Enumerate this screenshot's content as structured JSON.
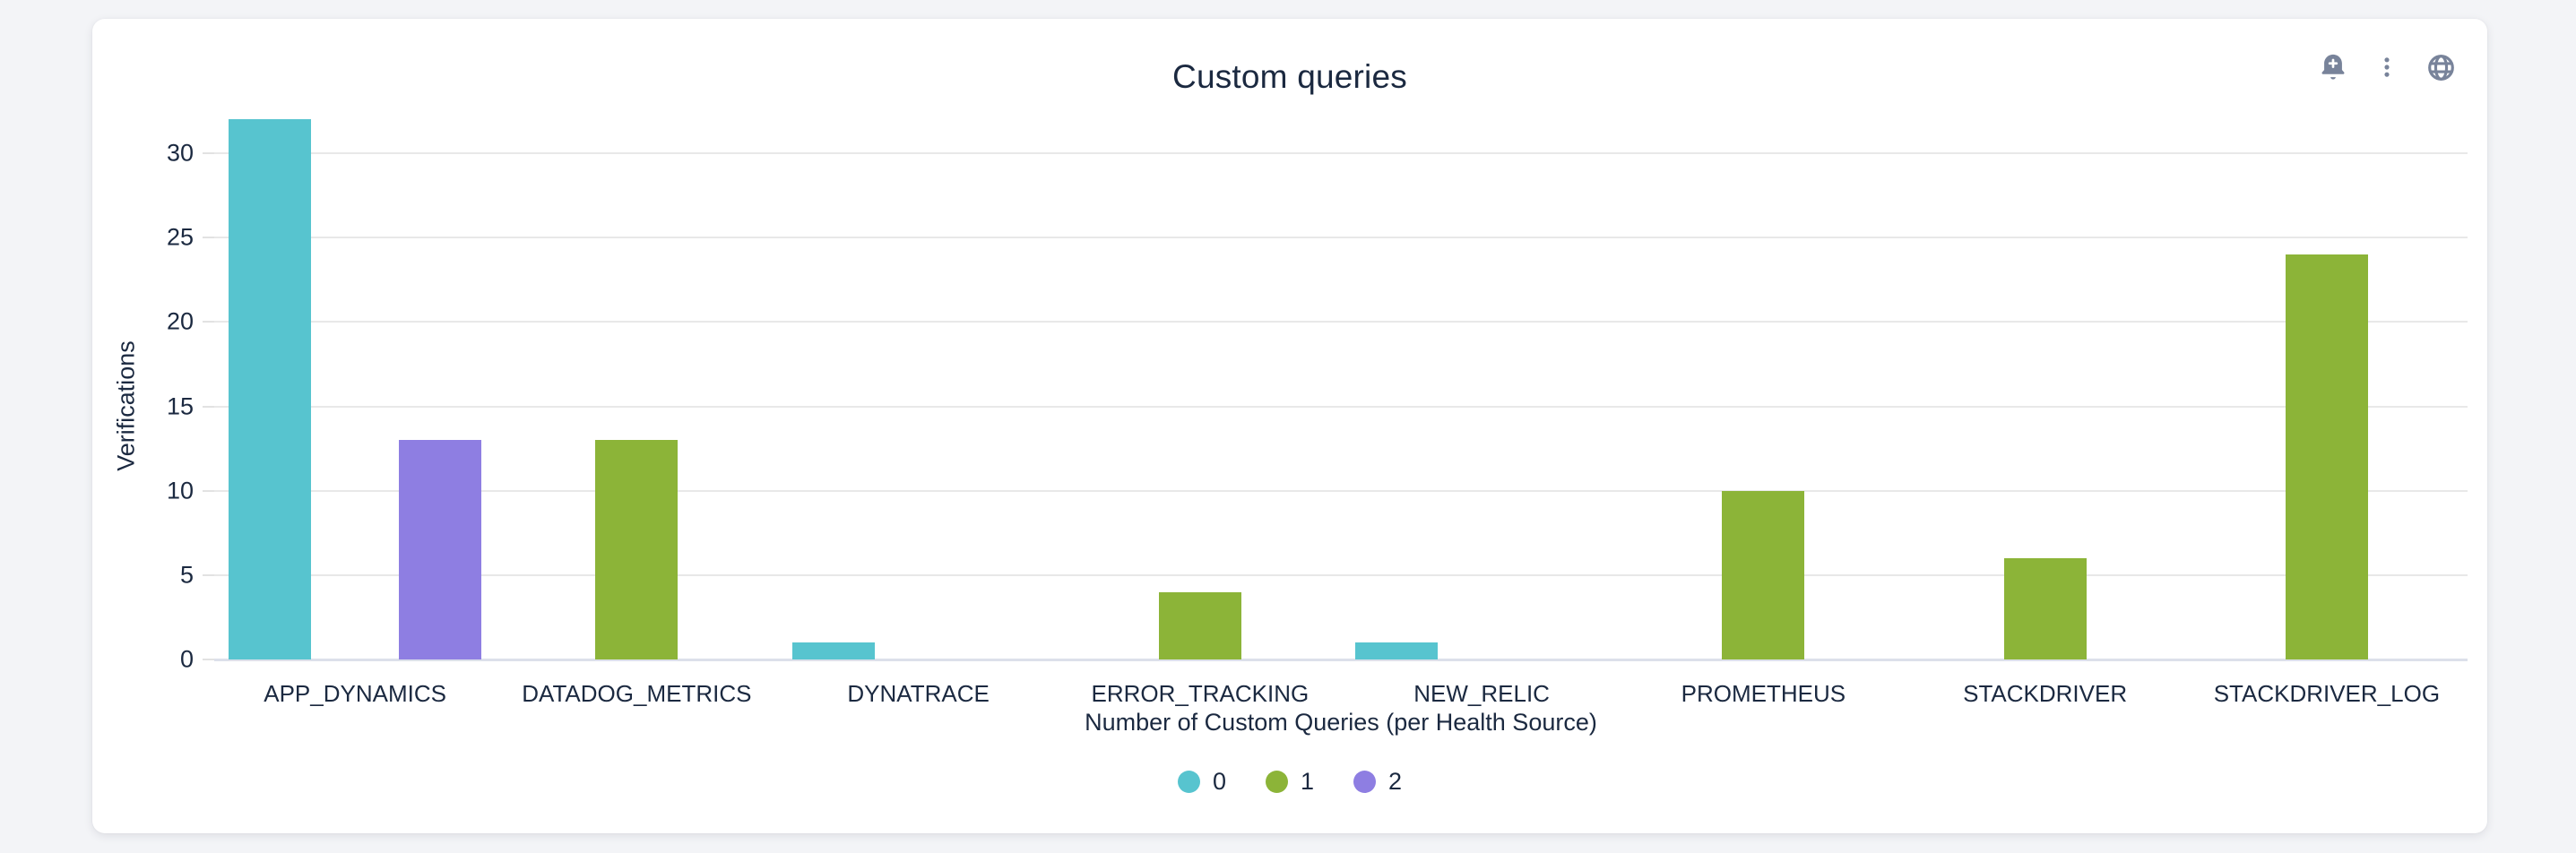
{
  "header": {
    "title": "Custom queries",
    "icons": [
      {
        "name": "bell-plus-icon"
      },
      {
        "name": "kebab-menu-icon"
      },
      {
        "name": "globe-icon"
      }
    ],
    "icon_color": "#78839a"
  },
  "colors": {
    "card_background": "#ffffff",
    "page_background": "#f3f4f7",
    "text": "#1b2940",
    "gridline": "#e8e8e8",
    "axis_line": "#dce0ea"
  },
  "chart_data": {
    "type": "bar",
    "title": "Custom queries",
    "xlabel": "Number of Custom Queries (per Health Source)",
    "ylabel": "Verifications",
    "ylim": [
      0,
      32
    ],
    "yticks": [
      0,
      5,
      10,
      15,
      20,
      25,
      30
    ],
    "grid": true,
    "legend_position": "bottom",
    "categories": [
      "APP_DYNAMICS",
      "DATADOG_METRICS",
      "DYNATRACE",
      "ERROR_TRACKING",
      "NEW_RELIC",
      "PROMETHEUS",
      "STACKDRIVER",
      "STACKDRIVER_LOG"
    ],
    "series": [
      {
        "name": "0",
        "color": "#57c4cf",
        "values": [
          32,
          0,
          1,
          0,
          1,
          0,
          0,
          0
        ]
      },
      {
        "name": "1",
        "color": "#8cb438",
        "values": [
          0,
          13,
          0,
          4,
          0,
          10,
          6,
          24
        ]
      },
      {
        "name": "2",
        "color": "#8e7ee2",
        "values": [
          13,
          0,
          0,
          0,
          0,
          0,
          0,
          0
        ]
      }
    ]
  }
}
